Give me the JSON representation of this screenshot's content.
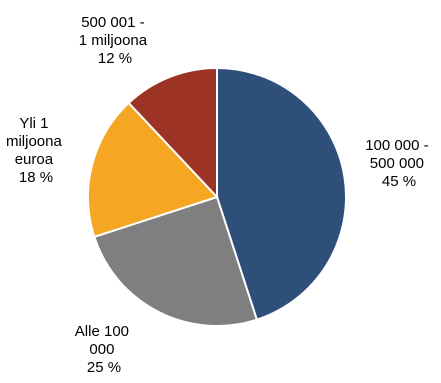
{
  "chart_data": {
    "type": "pie",
    "start_angle_deg": 0,
    "direction": "clockwise",
    "slices": [
      {
        "value": 45,
        "label_lines": [
          "100 000 -",
          "500 000",
          "45 %"
        ],
        "color": "#2e4f7a"
      },
      {
        "value": 25,
        "label_lines": [
          "Alle 100",
          "000",
          "25 %"
        ],
        "color": "#7f7f7f"
      },
      {
        "value": 18,
        "label_lines": [
          "Yli 1",
          "miljoona",
          "euroa",
          "18 %"
        ],
        "color": "#f5a623"
      },
      {
        "value": 12,
        "label_lines": [
          "500 001 -",
          "1 miljoona",
          "12 %"
        ],
        "color": "#9c3324"
      }
    ]
  }
}
